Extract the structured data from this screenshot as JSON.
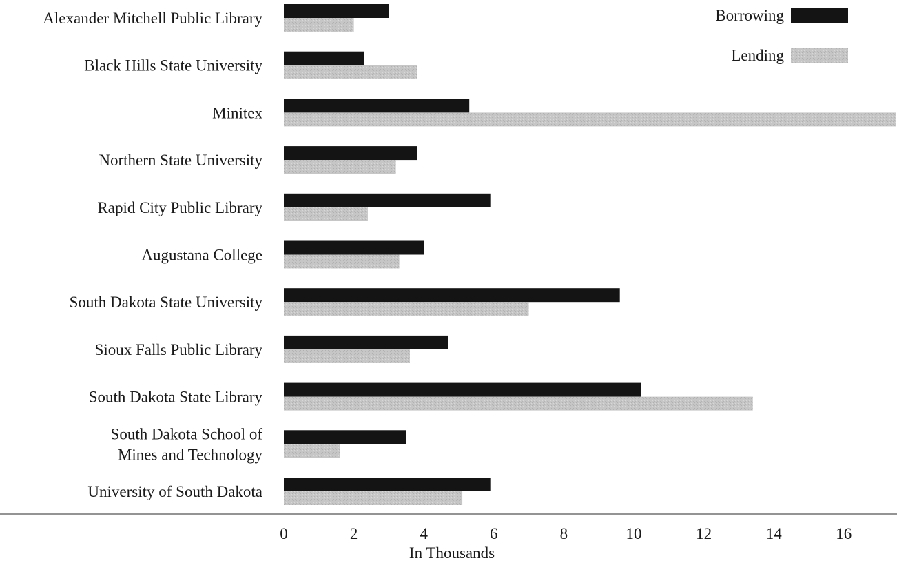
{
  "chart_data": {
    "type": "bar",
    "orientation": "horizontal",
    "categories": [
      "Alexander Mitchell Public Library",
      "Black Hills State University",
      "Minitex",
      "Northern State University",
      "Rapid City Public Library",
      "Augustana College",
      "South Dakota State University",
      "Sioux Falls Public Library",
      "South Dakota State Library",
      "South Dakota School of Mines and Technology",
      "University of South Dakota"
    ],
    "category_lines": [
      [
        "Alexander Mitchell Public Library"
      ],
      [
        "Black Hills State University"
      ],
      [
        "Minitex"
      ],
      [
        "Northern State University"
      ],
      [
        "Rapid City Public Library"
      ],
      [
        "Augustana College"
      ],
      [
        "South Dakota State University"
      ],
      [
        "Sioux Falls Public Library"
      ],
      [
        "South Dakota State Library"
      ],
      [
        "South Dakota School of",
        "Mines and Technology"
      ],
      [
        "University of South Dakota"
      ]
    ],
    "series": [
      {
        "name": "Borrowing",
        "color": "#141414",
        "values": [
          3.0,
          2.3,
          5.3,
          3.8,
          5.9,
          4.0,
          9.6,
          4.7,
          10.2,
          3.5,
          5.9
        ]
      },
      {
        "name": "Lending",
        "color": "#c4c4c4",
        "values": [
          2.0,
          3.8,
          17.5,
          3.2,
          2.4,
          3.3,
          7.0,
          3.6,
          13.4,
          1.6,
          5.1
        ]
      }
    ],
    "xlabel": "In Thousands",
    "ylabel": "",
    "title": "",
    "xlim": [
      0,
      17.5
    ],
    "xticks": [
      0,
      2,
      4,
      6,
      8,
      10,
      12,
      14,
      16
    ],
    "grid": false,
    "legend_position": "top-right"
  }
}
